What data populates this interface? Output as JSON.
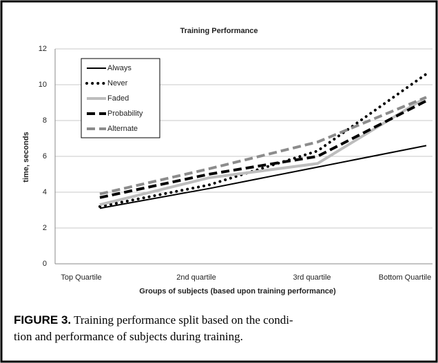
{
  "chart_data": {
    "type": "line",
    "title": "Training Performance",
    "x_label": "Groups of subjects (based upon training performance)",
    "y_label": "time, seconds",
    "categories": [
      "Top Quartile",
      "2nd quartile",
      "3rd quartile",
      "Bottom Quartile"
    ],
    "series": [
      {
        "name": "Always",
        "color": "#000000",
        "dash": "solid",
        "values": [
          3.1,
          4.2,
          5.4,
          6.6
        ]
      },
      {
        "name": "Never",
        "color": "#000000",
        "dash": "dotted",
        "values": [
          3.2,
          4.4,
          6.3,
          10.6
        ]
      },
      {
        "name": "Faded",
        "color": "#bdbdbd",
        "dash": "solid",
        "values": [
          3.3,
          4.8,
          5.6,
          9.3
        ]
      },
      {
        "name": "Probability",
        "color": "#000000",
        "dash": "dashed",
        "values": [
          3.7,
          5.0,
          6.0,
          9.1
        ]
      },
      {
        "name": "Alternate",
        "color": "#8c8c8c",
        "dash": "dashed",
        "values": [
          3.9,
          5.3,
          6.8,
          9.3
        ]
      }
    ],
    "ylim": [
      0,
      12
    ],
    "yticks": [
      0,
      2,
      4,
      6,
      8,
      10,
      12
    ],
    "grid": true,
    "legend": "upper left"
  },
  "caption": {
    "label": "FIGURE 3.",
    "lines": [
      " Training performance split based on the condi-",
      "tion and performance of subjects during training."
    ]
  }
}
